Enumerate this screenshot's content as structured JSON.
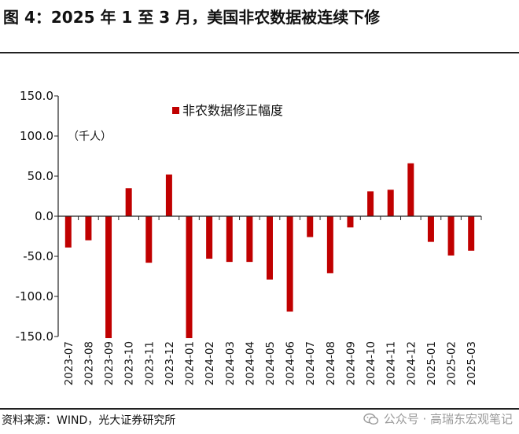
{
  "figure": {
    "title": "图 4：2025 年 1 至 3 月，美国非农数据被连续下修",
    "source": "资料来源：WIND，光大证券研究所",
    "watermark": "公众号 · 高瑞东宏观笔记"
  },
  "chart_data": {
    "type": "bar",
    "title": "",
    "unit_label": "（千人）",
    "legend": {
      "position": "top-center",
      "entries": [
        "非农数据修正幅度"
      ]
    },
    "series": [
      {
        "name": "非农数据修正幅度",
        "color": "#c00000",
        "values": [
          -39,
          -30,
          -152,
          35,
          -58,
          52,
          -152,
          -53,
          -57,
          -57,
          -79,
          -119,
          -26,
          -71,
          -14,
          31,
          33,
          66,
          -32,
          -49,
          -43
        ]
      }
    ],
    "categories": [
      "2023-07",
      "2023-08",
      "2023-09",
      "2023-10",
      "2023-11",
      "2023-12",
      "2024-01",
      "2024-02",
      "2024-03",
      "2024-04",
      "2024-05",
      "2024-06",
      "2024-07",
      "2024-08",
      "2024-09",
      "2024-10",
      "2024-11",
      "2024-12",
      "2025-01",
      "2025-02",
      "2025-03"
    ],
    "ylim": [
      -150,
      150
    ],
    "yticks": [
      "150.0",
      "100.0",
      "50.0",
      "0.0",
      "-50.0",
      "-100.0",
      "-150.0"
    ],
    "ytick_values": [
      150,
      100,
      50,
      0,
      -50,
      -100,
      -150
    ],
    "grid": false
  }
}
